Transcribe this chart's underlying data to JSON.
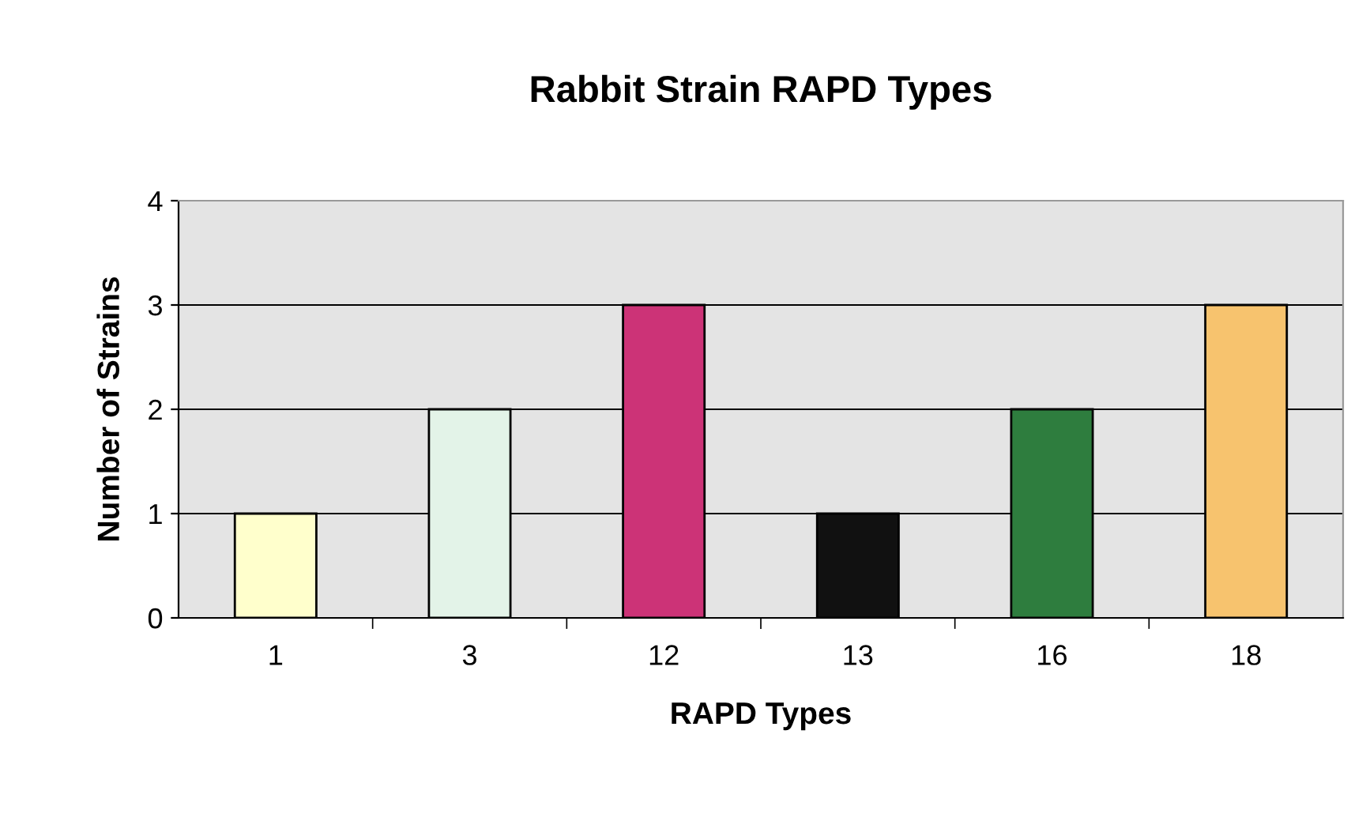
{
  "chart_data": {
    "type": "bar",
    "title": "Rabbit Strain RAPD Types",
    "xlabel": "RAPD Types",
    "ylabel": "Number of Strains",
    "categories": [
      "1",
      "3",
      "12",
      "13",
      "16",
      "18"
    ],
    "values": [
      1,
      2,
      3,
      1,
      2,
      3
    ],
    "colors": [
      "#ffffcc",
      "#e3f3e8",
      "#cc3377",
      "#111111",
      "#2e7d3e",
      "#f7c36e"
    ],
    "ylim": [
      0,
      4
    ],
    "yticks": [
      0,
      1,
      2,
      3,
      4
    ],
    "grid": "y",
    "legend": false
  }
}
